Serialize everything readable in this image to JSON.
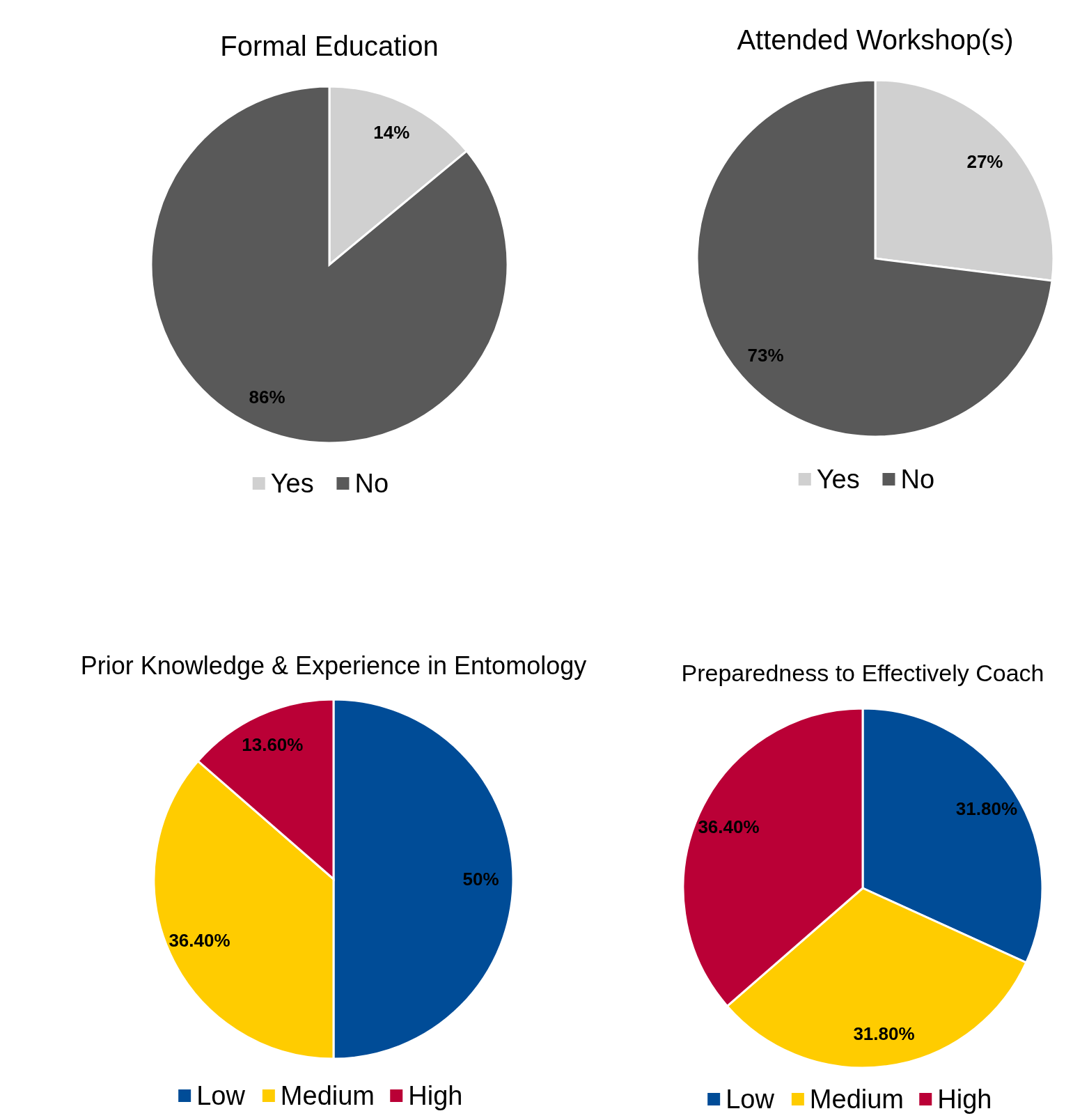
{
  "chart_data": [
    {
      "type": "pie",
      "title": "Formal Education",
      "categories": [
        "Yes",
        "No"
      ],
      "values": [
        14,
        86
      ],
      "colors": [
        "#d0d0d0",
        "#595959"
      ],
      "value_labels": [
        "14%",
        "86%"
      ],
      "legend": "bottom"
    },
    {
      "type": "pie",
      "title": "Attended Workshop(s)",
      "categories": [
        "Yes",
        "No"
      ],
      "values": [
        27,
        73
      ],
      "colors": [
        "#d0d0d0",
        "#595959"
      ],
      "value_labels": [
        "27%",
        "73%"
      ],
      "legend": "bottom"
    },
    {
      "type": "pie",
      "title": "Prior Knowledge & Experience in Entomology",
      "categories": [
        "Low",
        "Medium",
        "High"
      ],
      "values": [
        50,
        36.4,
        13.6
      ],
      "colors": [
        "#004c97",
        "#ffcc00",
        "#ba0036"
      ],
      "value_labels": [
        "50%",
        "36.40%",
        "13.60%"
      ],
      "legend": "bottom"
    },
    {
      "type": "pie",
      "title": "Preparedness to Effectively Coach",
      "categories": [
        "Low",
        "Medium",
        "High"
      ],
      "values": [
        31.8,
        31.8,
        36.4
      ],
      "colors": [
        "#004c97",
        "#ffcc00",
        "#ba0036"
      ],
      "value_labels": [
        "31.80%",
        "31.80%",
        "36.40%"
      ],
      "legend": "bottom"
    }
  ]
}
